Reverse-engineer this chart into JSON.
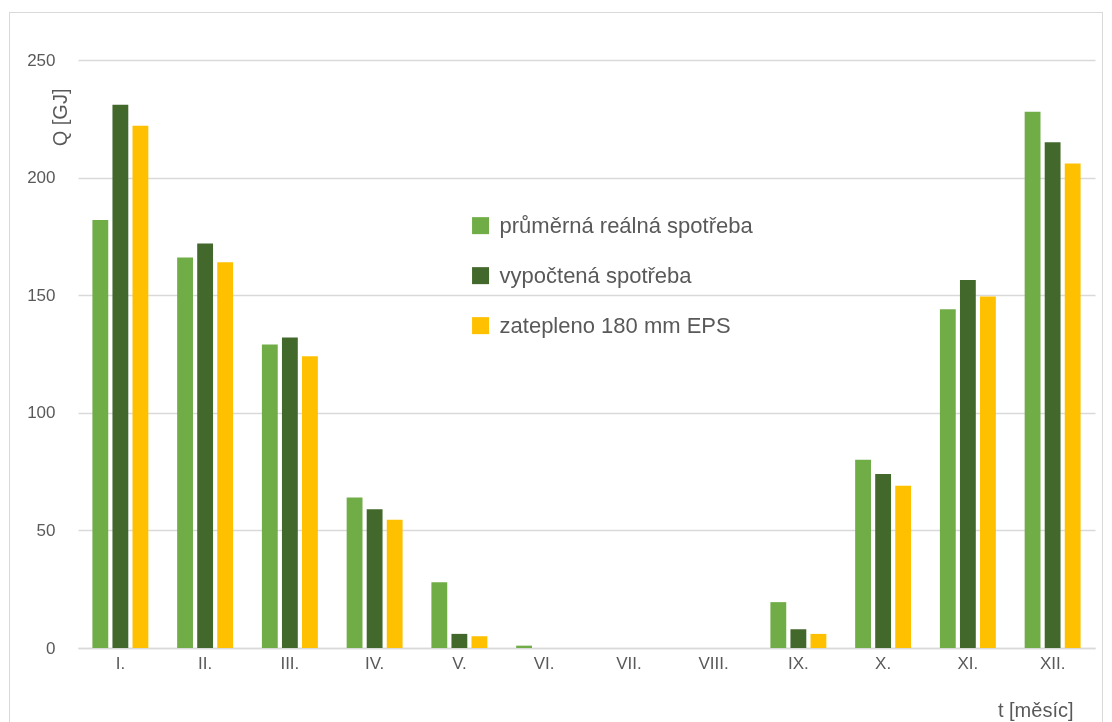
{
  "chart_data": {
    "type": "bar",
    "xlabel": "t [měsíc]",
    "ylabel": "Q [GJ]",
    "categories": [
      "I.",
      "II.",
      "III.",
      "IV.",
      "V.",
      "VI.",
      "VII.",
      "VIII.",
      "IX.",
      "X.",
      "XI.",
      "XII."
    ],
    "series": [
      {
        "name": "průměrná reálná spotřeba",
        "color": "#70ad47",
        "values": [
          182,
          166,
          129,
          64,
          28,
          1,
          0,
          0,
          19.5,
          80,
          144,
          228
        ]
      },
      {
        "name": "vypočtená spotřeba",
        "color": "#43682b",
        "values": [
          231,
          172,
          132,
          59,
          6,
          0,
          0,
          0,
          8,
          74,
          156.5,
          215
        ]
      },
      {
        "name": "zatepleno 180 mm EPS",
        "color": "#ffc000",
        "values": [
          222,
          164,
          124,
          54.5,
          5,
          0,
          0,
          0,
          6,
          69,
          149.5,
          206
        ]
      }
    ],
    "ylim": [
      0,
      250
    ],
    "yticks": [
      0,
      50,
      100,
      150,
      200,
      250
    ],
    "grid": "y",
    "legend": "top"
  }
}
